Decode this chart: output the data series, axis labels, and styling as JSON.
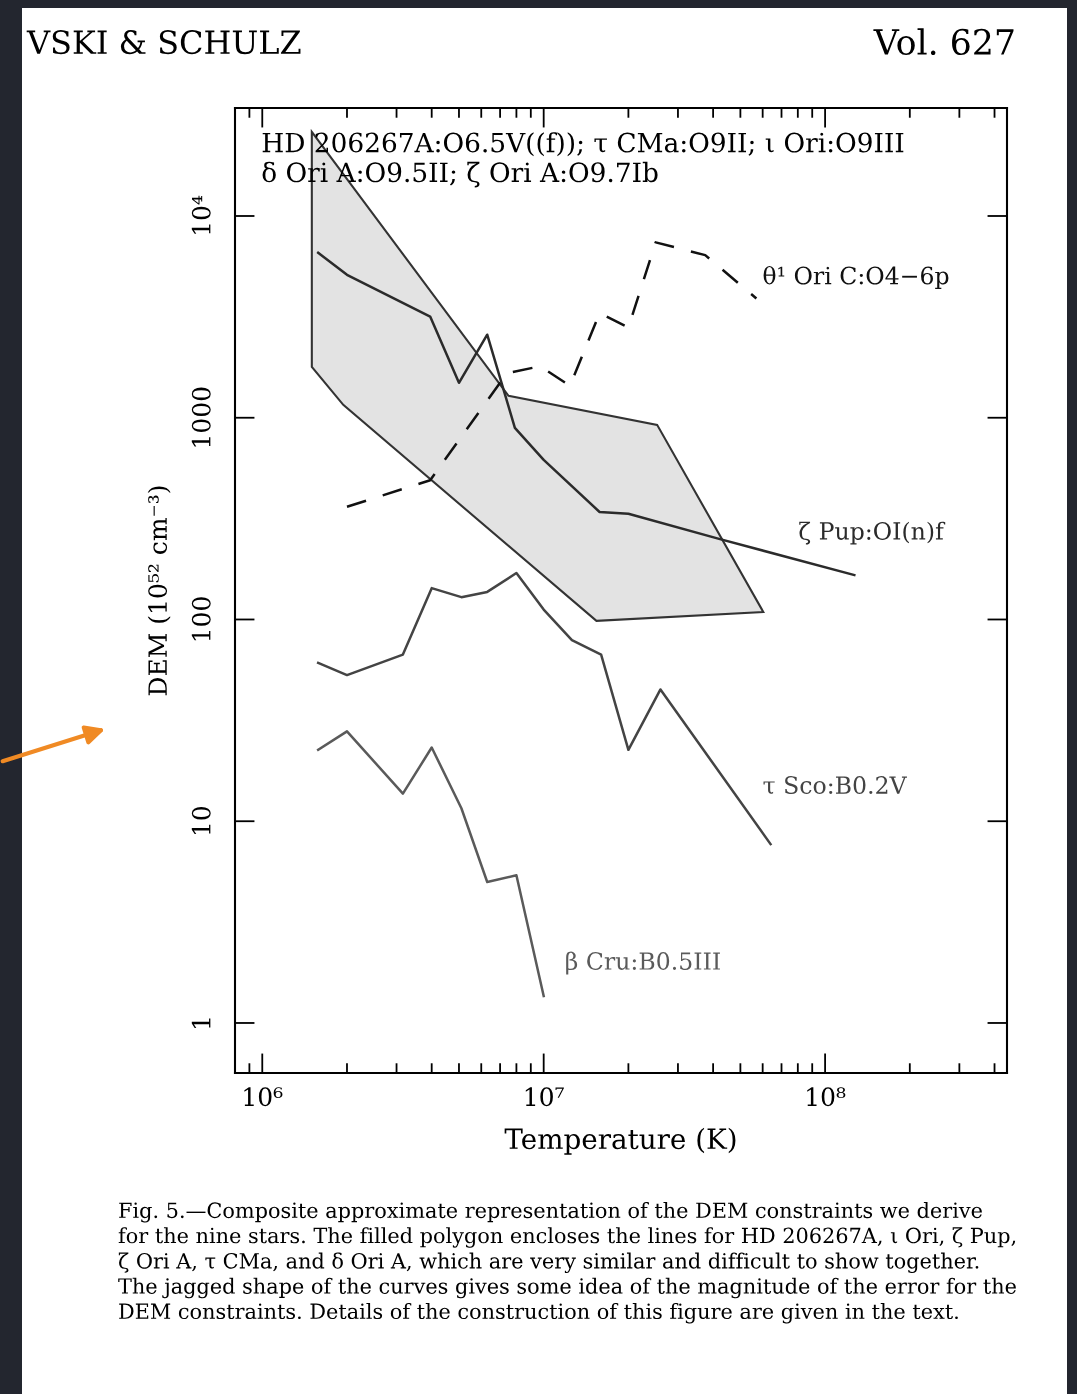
{
  "chart_data": {
    "type": "line",
    "xlabel": "Temperature (K)",
    "ylabel": "DEM (10⁵² cm⁻³)",
    "log": "xy",
    "xlim": [
      800000,
      443000000
    ],
    "ylim": [
      0.565,
      34300
    ],
    "xticks": [
      {
        "value": 1000000,
        "label": "10⁶"
      },
      {
        "value": 10000000,
        "label": "10⁷"
      },
      {
        "value": 100000000,
        "label": "10⁸"
      }
    ],
    "yticks": [
      1,
      10,
      100,
      1000,
      {
        "value": 10000,
        "label": "10⁴"
      }
    ],
    "annotations": [
      "VSKI & SCHULZ",
      "Vol. 627",
      "HD 206267A:O6.5V((f)); τ CMa:O9II; ι Ori:O9III\nδ Ori A:O9.5II; ζ Ori A:O9.7Ib",
      "Fig. 5.—Composite approximate representation of the DEM constraints we derive for the nine stars. The filled polygon encloses the lines for HD 206267A, ι Ori, ζ Pup, ζ Ori A, τ CMa, and δ Ori A, which are very similar and difficult to show together. The jagged shape of the curves gives some idea of the magnitude of the error for the DEM constraints. Details of the construction of this figure are given in the text."
    ],
    "series": [
      {
        "type": "area",
        "color": "#e3e3e3",
        "x": [
          1500000,
          7500000,
          25300000,
          60300000,
          15400000,
          1940000,
          1500000
        ],
        "values": [
          26100,
          1285,
          922,
          109,
          98.4,
          1158,
          1787
        ]
      },
      {
        "name": "θ¹ Ori C:O4−6p",
        "color": "#111111",
        "line_style": "dashed",
        "x": [
          2000000,
          3950000,
          7400000,
          9700000,
          12400000,
          15800000,
          20000000,
          25000000,
          37500000,
          57000000
        ],
        "values": [
          362,
          490,
          1660,
          1800,
          1440,
          3300,
          2800,
          7400,
          6400,
          3900
        ]
      },
      {
        "name": "ζ Pup:OI(n)f",
        "color": "#2b2b2b",
        "line_style": "solid",
        "x": [
          1580000,
          2000000,
          3950000,
          5000000,
          6300000,
          7900000,
          10000000,
          15800000,
          20000000,
          42000000,
          127000000
        ],
        "values": [
          6570,
          5110,
          3175,
          1490,
          2580,
          891,
          618,
          341,
          334,
          251,
          166
        ]
      },
      {
        "name": "τ Sco:B0.2V",
        "color": "#444444",
        "line_style": "solid",
        "x": [
          1580000,
          2000000,
          3160000,
          4000000,
          5100000,
          6300000,
          8000000,
          10000000,
          12600000,
          16000000,
          20000000,
          26000000,
          64000000
        ],
        "values": [
          61,
          53,
          67,
          143,
          129,
          137,
          170,
          112,
          79,
          67,
          22.6,
          45,
          7.7
        ]
      },
      {
        "name": "β Cru:B0.5III",
        "color": "#5a5a5a",
        "line_style": "solid",
        "x": [
          1580000,
          2000000,
          3160000,
          4000000,
          5100000,
          6300000,
          8000000,
          10000000
        ],
        "values": [
          22.6,
          27.9,
          13.7,
          23.2,
          11.6,
          5.0,
          5.4,
          1.36
        ]
      }
    ]
  }
}
